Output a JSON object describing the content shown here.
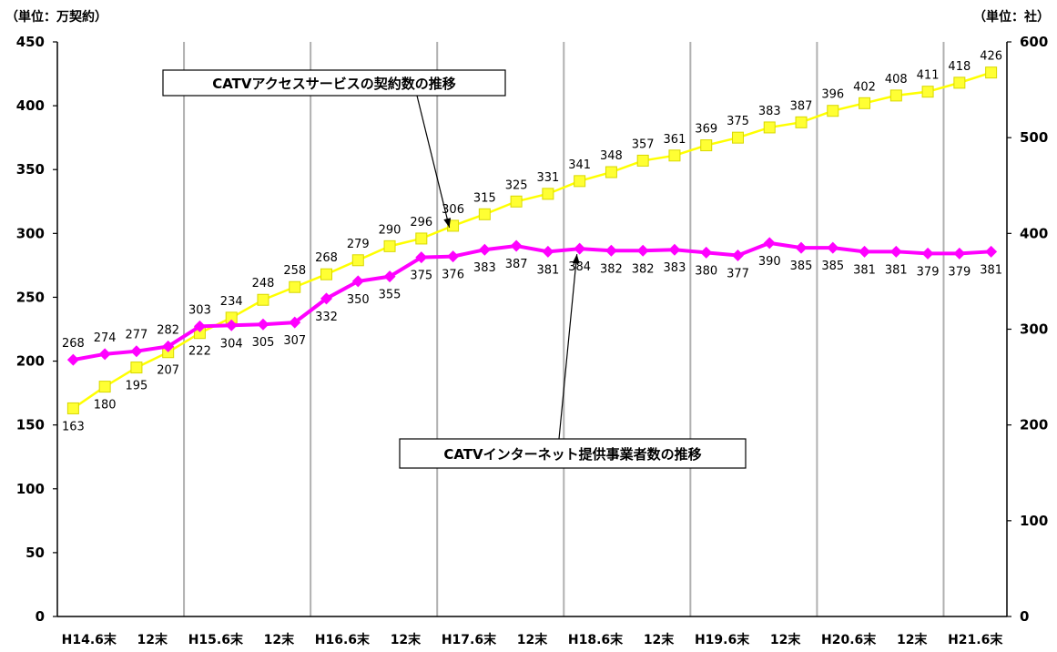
{
  "chart_data": {
    "type": "line",
    "y_axis_left": {
      "unit_label": "（単位：万契約）",
      "range": [
        0,
        450
      ],
      "step": 50,
      "ticks": [
        "0",
        "50",
        "100",
        "150",
        "200",
        "250",
        "300",
        "350",
        "400",
        "450"
      ]
    },
    "y_axis_right": {
      "unit_label": "（単位：社）",
      "range": [
        0,
        600
      ],
      "step": 100,
      "ticks": [
        "0",
        "100",
        "200",
        "300",
        "400",
        "500",
        "600"
      ]
    },
    "x_labels": [
      "H14.6末",
      "12末",
      "H15.6末",
      "12末",
      "H16.6末",
      "12末",
      "H17.6末",
      "12末",
      "H18.6末",
      "12末",
      "H19.6末",
      "12末",
      "H20.6末",
      "12末",
      "H21.6末"
    ],
    "vertical_gridlines_after_label_index": [
      2,
      4,
      6,
      8,
      10,
      12,
      14
    ],
    "series": [
      {
        "name": "CATVアクセスサービスの契約数の推移",
        "axis": "left",
        "color": "#ffff00",
        "marker_fill": "#ffff33",
        "marker": "square",
        "values": [
          163,
          180,
          195,
          207,
          222,
          234,
          248,
          258,
          268,
          279,
          290,
          296,
          306,
          315,
          325,
          331,
          341,
          348,
          357,
          361,
          369,
          375,
          383,
          387,
          396,
          402,
          408,
          411,
          418,
          426
        ]
      },
      {
        "name": "CATVインターネット提供事業者数の推移",
        "axis": "right",
        "color": "#ff00ff",
        "marker": "diamond",
        "values": [
          268,
          274,
          277,
          282,
          303,
          304,
          305,
          307,
          332,
          350,
          355,
          375,
          376,
          383,
          387,
          381,
          384,
          382,
          382,
          383,
          380,
          377,
          390,
          385,
          385,
          381,
          381,
          379,
          379,
          381
        ]
      }
    ],
    "grid": {
      "horizontal": false,
      "vertical": true
    },
    "callouts": [
      {
        "series_index": 0,
        "text": "CATVアクセスサービスの契約数の推移"
      },
      {
        "series_index": 1,
        "text": "CATVインターネット提供事業者数の推移"
      }
    ]
  }
}
